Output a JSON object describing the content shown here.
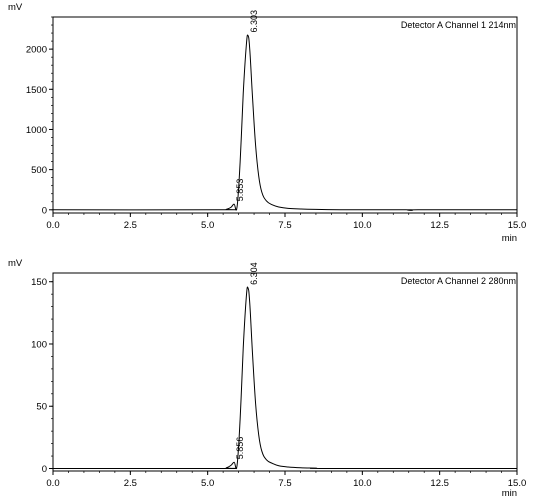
{
  "chart_data": [
    {
      "type": "line",
      "title": "Detector A Channel 1 214nm",
      "xlabel": "min",
      "ylabel": "mV",
      "xlim": [
        0.0,
        15.0
      ],
      "ylim": [
        -40,
        2400
      ],
      "x_ticks": [
        "0.0",
        "2.5",
        "5.0",
        "7.5",
        "10.0",
        "12.5",
        "15.0"
      ],
      "y_ticks": [
        "0",
        "500",
        "1000",
        "1500",
        "2000"
      ],
      "peaks": [
        {
          "label": "5.853",
          "x": 5.853,
          "y": 70
        },
        {
          "label": "6.303",
          "x": 6.303,
          "y": 2170
        }
      ],
      "series": [
        {
          "x": [
            0.0,
            5.4,
            5.6,
            5.75,
            5.853,
            5.95,
            6.05,
            6.15,
            6.25,
            6.303,
            6.36,
            6.45,
            6.55,
            6.65,
            6.75,
            6.9,
            7.1,
            7.3,
            7.6,
            8.0,
            8.5,
            9.5,
            11.4,
            11.6,
            11.8,
            15.0
          ],
          "y": [
            0,
            0,
            5,
            30,
            70,
            35,
            600,
            1450,
            2050,
            2170,
            2000,
            1400,
            800,
            420,
            220,
            110,
            60,
            35,
            18,
            10,
            5,
            0,
            0,
            -8,
            0,
            0
          ]
        }
      ]
    },
    {
      "type": "line",
      "title": "Detector A Channel 2 280nm",
      "xlabel": "min",
      "ylabel": "mV",
      "xlim": [
        0.0,
        15.0
      ],
      "ylim": [
        -2,
        157
      ],
      "x_ticks": [
        "0.0",
        "2.5",
        "5.0",
        "7.5",
        "10.0",
        "12.5",
        "15.0"
      ],
      "y_ticks": [
        "0",
        "50",
        "100",
        "150"
      ],
      "peaks": [
        {
          "label": "5.856",
          "x": 5.856,
          "y": 5
        },
        {
          "label": "6.304",
          "x": 6.304,
          "y": 145
        }
      ],
      "series": [
        {
          "x": [
            0.0,
            5.4,
            5.6,
            5.75,
            5.856,
            5.95,
            6.05,
            6.15,
            6.25,
            6.304,
            6.36,
            6.45,
            6.55,
            6.65,
            6.75,
            6.9,
            7.1,
            7.3,
            7.6,
            8.0,
            8.5,
            9.0,
            15.0
          ],
          "y": [
            0,
            0,
            0.5,
            2.5,
            5,
            2.5,
            40,
            97,
            138,
            145,
            133,
            92,
            52,
            27,
            14,
            7,
            4,
            2.2,
            1.2,
            0.6,
            0.3,
            0,
            0
          ]
        }
      ]
    }
  ]
}
